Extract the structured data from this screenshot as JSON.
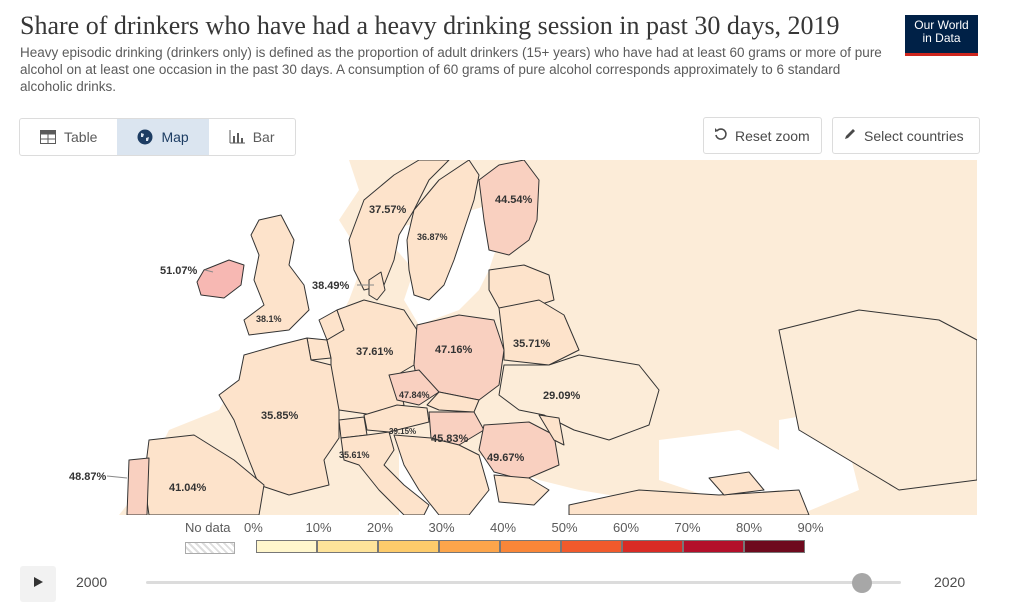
{
  "header": {
    "title": "Share of drinkers who have had a heavy drinking session in past 30 days, 2019",
    "subtitle": "Heavy episodic drinking (drinkers only) is defined as the proportion of adult drinkers (15+ years) who have had at least 60 grams or more of pure alcohol on at least one occasion in the past 30 days. A consumption of 60 grams of pure alcohol corresponds approximately to 6 standard alcoholic drinks.",
    "logo_line1": "Our World",
    "logo_line2": "in Data"
  },
  "tabs": [
    {
      "label": "Table",
      "icon": "table-icon"
    },
    {
      "label": "Map",
      "icon": "globe-icon",
      "active": true
    },
    {
      "label": "Bar",
      "icon": "bar-chart-icon"
    }
  ],
  "controls": {
    "reset_zoom": "Reset zoom",
    "select_countries": "Select countries"
  },
  "map": {
    "labels": {
      "ireland": "51.07%",
      "uk": "38.1%",
      "norway": "37.57%",
      "sweden": "36.87%",
      "finland": "44.54%",
      "denmark": "38.49%",
      "germany": "37.61%",
      "poland": "47.16%",
      "belarus": "35.71%",
      "ukraine": "29.09%",
      "czechia": "47.84%",
      "austria": "39.15%",
      "hungary": "45.83%",
      "romania": "49.67%",
      "france": "35.85%",
      "italy": "35.61%",
      "spain": "41.04%",
      "portugal": "48.87%"
    }
  },
  "legend": {
    "no_data": "No data",
    "ticks": [
      "0%",
      "10%",
      "20%",
      "30%",
      "40%",
      "50%",
      "60%",
      "70%",
      "80%",
      "90%"
    ],
    "colors": [
      "#fff6cc",
      "#fee39a",
      "#fdcb6b",
      "#fca54b",
      "#f98638",
      "#f15a2c",
      "#d92b25",
      "#b3102a",
      "#6e0a1e"
    ]
  },
  "timeline": {
    "start_year": "2000",
    "end_year": "2020",
    "selected_year": 2019
  }
}
